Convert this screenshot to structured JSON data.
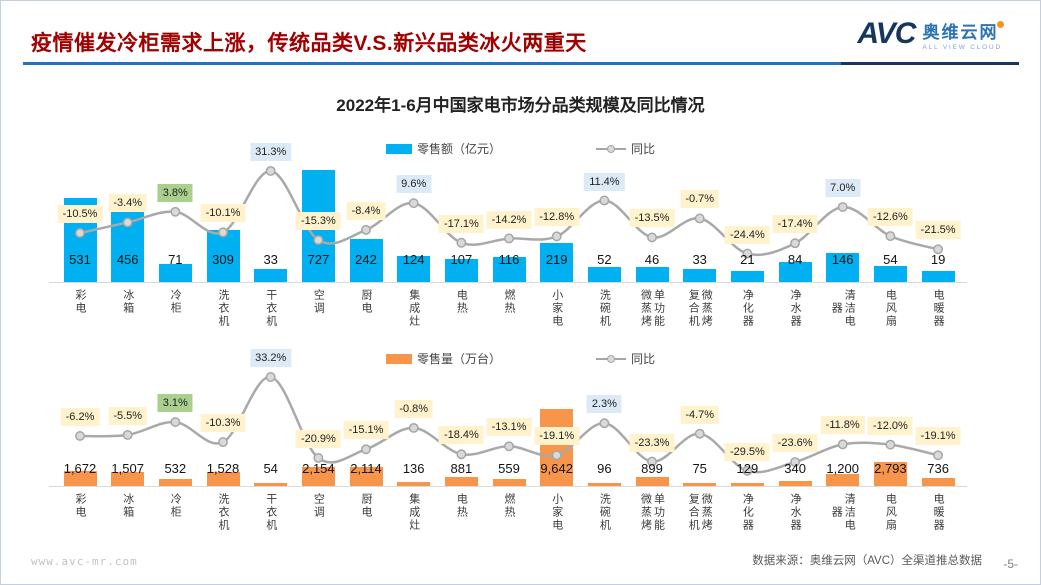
{
  "header": {
    "title": "疫情催发冷柜需求上涨，传统品类V.S.新兴品类冰火两重天",
    "logo": {
      "avc": "AVC",
      "cn": "奥维云网",
      "en": "ALL VIEW CLOUD"
    }
  },
  "chart_title": "2022年1-6月中国家电市场分品类规模及同比情况",
  "colors": {
    "bar_value": "#00b0f0",
    "bar_volume": "#f7964b",
    "line": "#a9a9a9",
    "marker_fill": "#d9d9d9",
    "marker_stroke": "#a6a6a6",
    "label_beige": "#fff2cc",
    "label_green": "#a9d08e",
    "label_blue": "#dce9f6",
    "title_red": "#a00000",
    "underline_blue": "#1e73c0"
  },
  "category_columns": [
    [
      "彩电"
    ],
    [
      "冰箱"
    ],
    [
      "冷柜"
    ],
    [
      "洗衣机"
    ],
    [
      "干衣机"
    ],
    [
      "空调"
    ],
    [
      "厨电"
    ],
    [
      "集成灶"
    ],
    [
      "电热"
    ],
    [
      "燃热"
    ],
    [
      "小家电"
    ],
    [
      "洗碗机"
    ],
    [
      "微蒸烤",
      "单功能"
    ],
    [
      "复合机",
      "微蒸烤"
    ],
    [
      "净化器"
    ],
    [
      "净水器"
    ],
    [
      "器",
      "清洁电"
    ],
    [
      "电风扇"
    ],
    [
      "电暖器"
    ]
  ],
  "chart_data": [
    {
      "type": "bar+line",
      "title": "2022年1-6月中国家电市场分品类规模及同比情况",
      "categories": [
        "彩电",
        "冰箱",
        "冷柜",
        "洗衣机",
        "干衣机",
        "空调",
        "厨电",
        "集成灶",
        "电热",
        "燃热",
        "小家电",
        "洗碗机",
        "单功能微蒸烤",
        "微蒸烤复合机",
        "净化器",
        "净水器",
        "清洁电器",
        "电风扇",
        "电暖器"
      ],
      "series": [
        {
          "name": "零售额（亿元）",
          "type": "bar",
          "values": [
            531,
            456,
            71,
            309,
            33,
            727,
            242,
            124,
            107,
            116,
            219,
            52,
            46,
            33,
            21,
            84,
            146,
            54,
            19
          ],
          "labels": [
            "531",
            "456",
            "71",
            "309",
            "33",
            "727",
            "242",
            "124",
            "107",
            "116",
            "219",
            "52",
            "46",
            "33",
            "21",
            "84",
            "146",
            "54",
            "19"
          ]
        },
        {
          "name": "同比",
          "type": "line",
          "values": [
            -10.5,
            -3.4,
            3.8,
            -10.1,
            31.3,
            -15.3,
            -8.4,
            9.6,
            -17.1,
            -14.2,
            -12.8,
            11.4,
            -13.5,
            -0.7,
            -24.4,
            -17.4,
            7.0,
            -12.6,
            -21.5
          ],
          "labels": [
            "-10.5%",
            "-3.4%",
            "3.8%",
            "-10.1%",
            "31.3%",
            "-15.3%",
            "-8.4%",
            "9.6%",
            "-17.1%",
            "-14.2%",
            "-12.8%",
            "11.4%",
            "-13.5%",
            "-0.7%",
            "-24.4%",
            "-17.4%",
            "7.0%",
            "-12.6%",
            "-21.5%"
          ],
          "label_styles": [
            "beige",
            "beige",
            "green",
            "beige",
            "blue",
            "beige",
            "beige",
            "blue",
            "beige",
            "beige",
            "beige",
            "blue",
            "beige",
            "beige",
            "beige",
            "beige",
            "blue",
            "beige",
            "beige"
          ]
        }
      ]
    },
    {
      "type": "bar+line",
      "title": "2022年1-6月中国家电市场分品类规模及同比情况",
      "categories": [
        "彩电",
        "冰箱",
        "冷柜",
        "洗衣机",
        "干衣机",
        "空调",
        "厨电",
        "集成灶",
        "电热",
        "燃热",
        "小家电",
        "洗碗机",
        "单功能微蒸烤",
        "微蒸烤复合机",
        "净化器",
        "净水器",
        "清洁电器",
        "电风扇",
        "电暖器"
      ],
      "series": [
        {
          "name": "零售量（万台）",
          "type": "bar",
          "values": [
            1672,
            1507,
            532,
            1528,
            54,
            2154,
            2114,
            136,
            881,
            559,
            9642,
            96,
            899,
            75,
            129,
            340,
            1200,
            2793,
            736
          ],
          "labels": [
            "1,672",
            "1,507",
            "532",
            "1,528",
            "54",
            "2,154",
            "2,114",
            "136",
            "881",
            "559",
            "9,642",
            "96",
            "899",
            "75",
            "129",
            "340",
            "1,200",
            "2,793",
            "736"
          ]
        },
        {
          "name": "同比",
          "type": "line",
          "values": [
            -6.2,
            -5.5,
            3.1,
            -10.3,
            33.2,
            -20.9,
            -15.1,
            -0.8,
            -18.4,
            -13.1,
            -19.1,
            2.3,
            -23.3,
            -4.7,
            -29.5,
            -23.6,
            -11.8,
            -12.0,
            -19.1
          ],
          "labels": [
            "-6.2%",
            "-5.5%",
            "3.1%",
            "-10.3%",
            "33.2%",
            "-20.9%",
            "-15.1%",
            "-0.8%",
            "-18.4%",
            "-13.1%",
            "-19.1%",
            "2.3%",
            "-23.3%",
            "-4.7%",
            "-29.5%",
            "-23.6%",
            "-11.8%",
            "-12.0%",
            "-19.1%"
          ],
          "label_styles": [
            "beige",
            "beige",
            "green",
            "beige",
            "blue",
            "beige",
            "beige",
            "beige",
            "beige",
            "beige",
            "beige",
            "blue",
            "beige",
            "beige",
            "beige",
            "beige",
            "beige",
            "beige",
            "beige"
          ]
        }
      ]
    }
  ],
  "footer": {
    "site": "www.avc-mr.com",
    "source": "数据来源：奥维云网（AVC）全渠道推总数据",
    "page": "-5-"
  }
}
